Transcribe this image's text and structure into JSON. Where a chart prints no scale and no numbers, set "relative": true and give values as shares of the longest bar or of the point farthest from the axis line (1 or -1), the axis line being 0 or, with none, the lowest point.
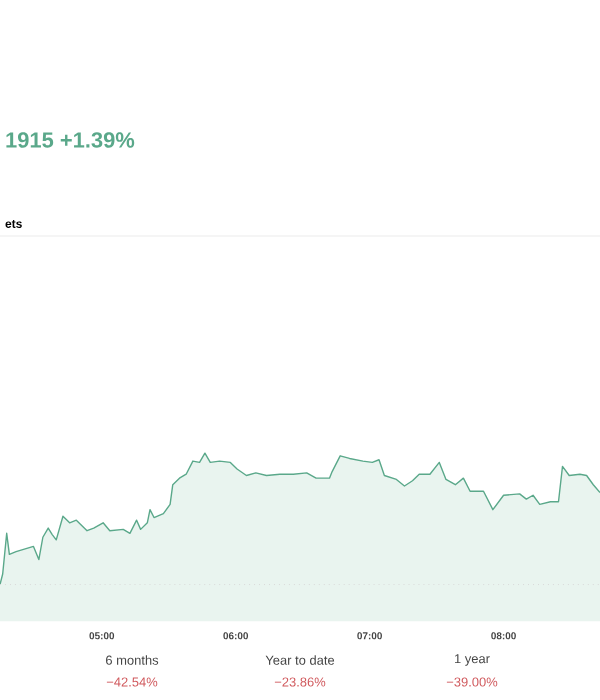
{
  "chart_data": {
    "type": "area",
    "title": "1915 +1.39%",
    "relative": true,
    "color": "#5aa88a",
    "x": [
      4.24,
      4.26,
      4.29,
      4.31,
      4.36,
      4.49,
      4.53,
      4.56,
      4.6,
      4.63,
      4.66,
      4.71,
      4.76,
      4.81,
      4.89,
      4.94,
      5.01,
      5.06,
      5.16,
      5.21,
      5.26,
      5.29,
      5.34,
      5.36,
      5.39,
      5.46,
      5.51,
      5.53,
      5.58,
      5.63,
      5.68,
      5.73,
      5.77,
      5.81,
      5.88,
      5.96,
      6.01,
      6.08,
      6.15,
      6.23,
      6.33,
      6.43,
      6.53,
      6.6,
      6.7,
      6.72,
      6.78,
      6.85,
      6.95,
      7.02,
      7.07,
      7.11,
      7.2,
      7.26,
      7.32,
      7.37,
      7.45,
      7.52,
      7.57,
      7.64,
      7.7,
      7.75,
      7.85,
      7.92,
      8.0,
      8.12,
      8.17,
      8.22,
      8.27,
      8.35,
      8.41,
      8.44,
      8.49,
      8.57,
      8.62,
      8.67,
      8.72
    ],
    "values": [
      0,
      0.08,
      0.39,
      0.23,
      0.25,
      0.29,
      0.19,
      0.36,
      0.43,
      0.38,
      0.34,
      0.52,
      0.47,
      0.49,
      0.41,
      0.43,
      0.47,
      0.41,
      0.42,
      0.39,
      0.49,
      0.42,
      0.47,
      0.57,
      0.51,
      0.54,
      0.61,
      0.76,
      0.81,
      0.84,
      0.94,
      0.93,
      1,
      0.93,
      0.94,
      0.93,
      0.88,
      0.83,
      0.85,
      0.83,
      0.84,
      0.84,
      0.85,
      0.81,
      0.81,
      0.86,
      0.98,
      0.96,
      0.94,
      0.93,
      0.95,
      0.83,
      0.8,
      0.75,
      0.79,
      0.84,
      0.84,
      0.93,
      0.8,
      0.76,
      0.81,
      0.71,
      0.71,
      0.57,
      0.68,
      0.69,
      0.65,
      0.68,
      0.61,
      0.63,
      0.63,
      0.9,
      0.83,
      0.84,
      0.83,
      0.76,
      0.7
    ],
    "xlim": [
      4.24,
      8.72
    ],
    "xticks": [
      {
        "value": 5,
        "label": "05:00"
      },
      {
        "value": 6,
        "label": "06:00"
      },
      {
        "value": 7,
        "label": "07:00"
      },
      {
        "value": 8,
        "label": "08:00"
      }
    ],
    "annotations": [
      "ets",
      "6 months",
      "−42.54%",
      "Year to date",
      "−23.86%",
      "1 year",
      "−39.00%"
    ]
  }
}
